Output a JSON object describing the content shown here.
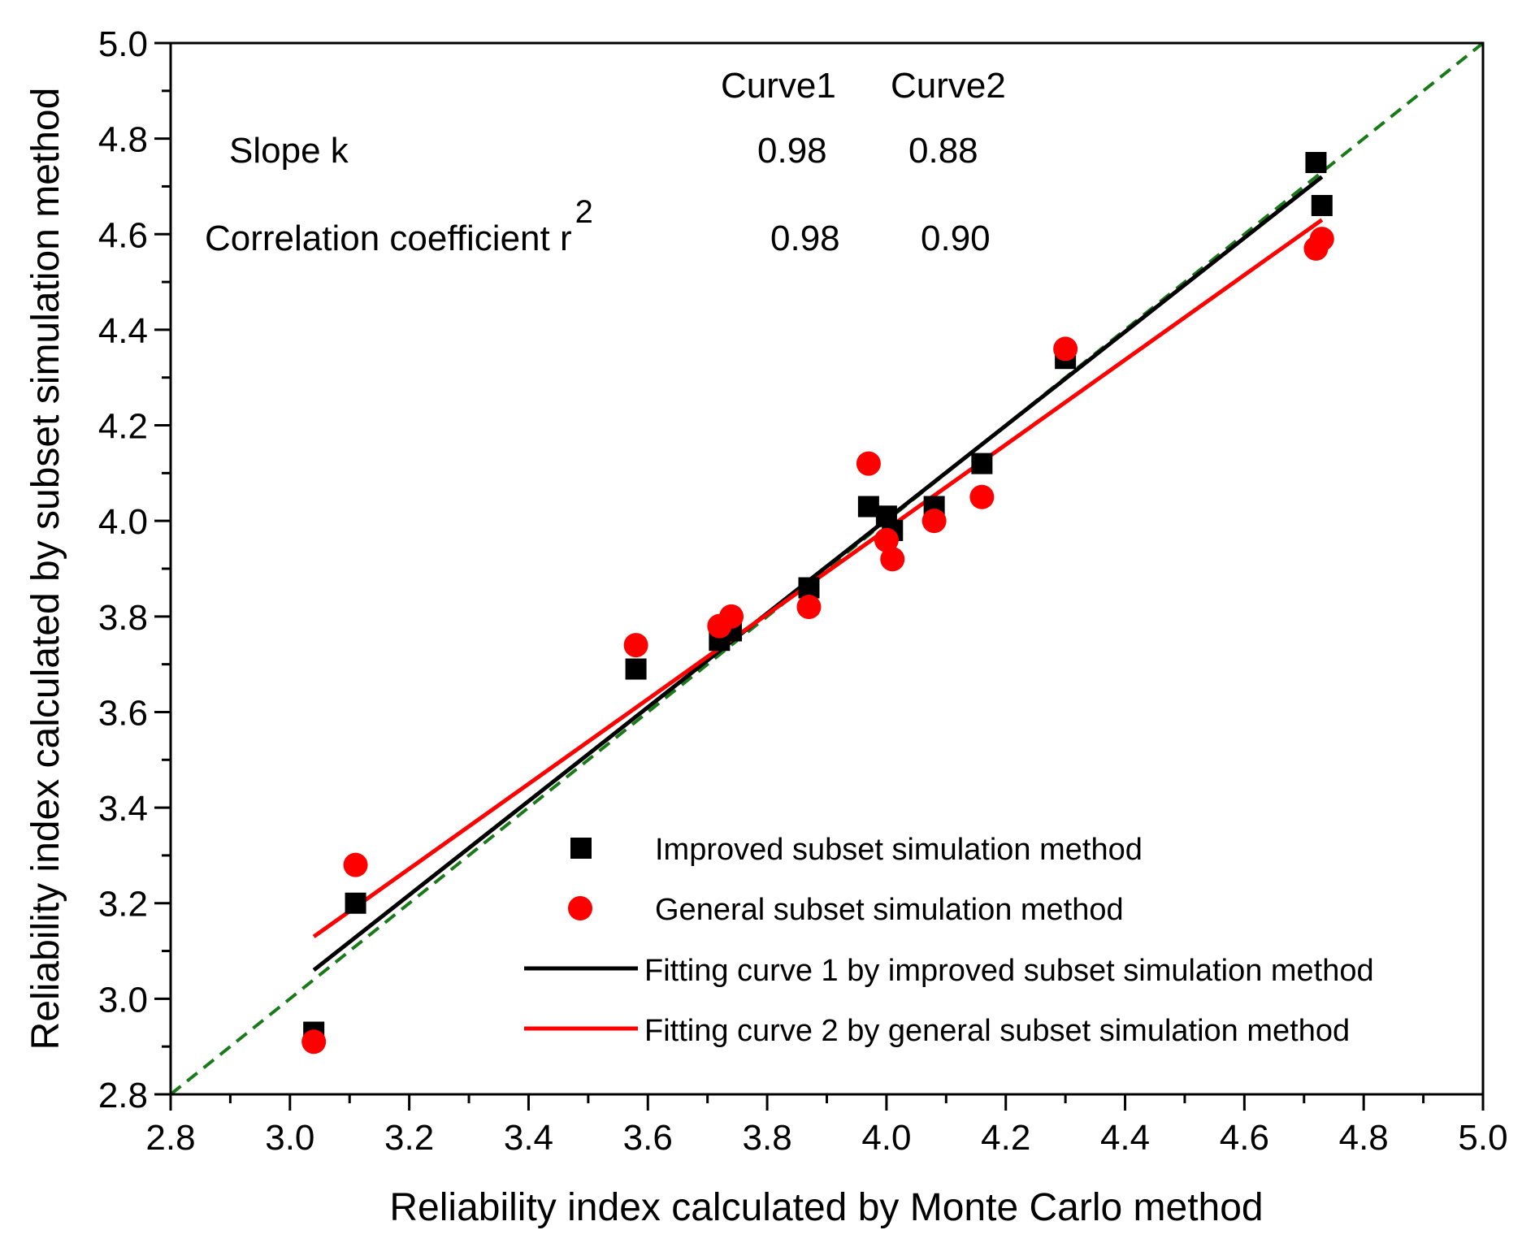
{
  "chart_data": {
    "type": "scatter",
    "xlabel": "Reliability index calculated by Monte Carlo method",
    "ylabel": "Reliability index calculated by subset simulation method",
    "xlim": [
      2.8,
      5.0
    ],
    "ylim": [
      2.8,
      5.0
    ],
    "x_ticks": [
      "2.8",
      "3.0",
      "3.2",
      "3.4",
      "3.6",
      "3.8",
      "4.0",
      "4.2",
      "4.4",
      "4.6",
      "4.8",
      "5.0"
    ],
    "y_ticks": [
      "2.8",
      "3.0",
      "3.2",
      "3.4",
      "3.6",
      "3.8",
      "4.0",
      "4.2",
      "4.4",
      "4.6",
      "4.8",
      "5.0"
    ],
    "grid": false,
    "legend_position": "bottom-right",
    "series": [
      {
        "name": "Improved subset simulation method",
        "marker": "square",
        "color": "#000000",
        "points": [
          [
            3.04,
            2.93
          ],
          [
            3.11,
            3.2
          ],
          [
            3.58,
            3.69
          ],
          [
            3.72,
            3.75
          ],
          [
            3.74,
            3.77
          ],
          [
            3.87,
            3.86
          ],
          [
            3.97,
            4.03
          ],
          [
            4.0,
            4.01
          ],
          [
            4.01,
            3.98
          ],
          [
            4.08,
            4.03
          ],
          [
            4.16,
            4.12
          ],
          [
            4.3,
            4.34
          ],
          [
            4.72,
            4.75
          ],
          [
            4.73,
            4.66
          ]
        ]
      },
      {
        "name": "General subset simulation method",
        "marker": "circle",
        "color": "#ff0000",
        "points": [
          [
            3.04,
            2.91
          ],
          [
            3.11,
            3.28
          ],
          [
            3.58,
            3.74
          ],
          [
            3.72,
            3.78
          ],
          [
            3.74,
            3.8
          ],
          [
            3.87,
            3.82
          ],
          [
            3.97,
            4.12
          ],
          [
            4.0,
            3.96
          ],
          [
            4.01,
            3.92
          ],
          [
            4.08,
            4.0
          ],
          [
            4.16,
            4.05
          ],
          [
            4.3,
            4.36
          ],
          [
            4.72,
            4.57
          ],
          [
            4.73,
            4.59
          ]
        ]
      }
    ],
    "lines": [
      {
        "name": "Fitting curve 1 by improved subset simulation method",
        "color": "#000000",
        "x": [
          3.04,
          4.73
        ],
        "y": [
          3.06,
          4.72
        ]
      },
      {
        "name": "Fitting curve 2 by general subset simulation method",
        "color": "#ff0000",
        "x": [
          3.04,
          4.73
        ],
        "y": [
          3.13,
          4.63
        ]
      }
    ],
    "reference_line": {
      "style": "dashed",
      "color": "#1a7a1a",
      "x": [
        2.8,
        5.0
      ],
      "y": [
        2.8,
        5.0
      ]
    },
    "annotation_table": {
      "headers": [
        "Curve1",
        "Curve2"
      ],
      "rows": [
        {
          "label": "Slope k",
          "values": [
            "0.98",
            "0.88"
          ]
        },
        {
          "label": "Correlation coefficient r",
          "label_sup": "2",
          "values": [
            "0.98",
            "0.90"
          ]
        }
      ]
    }
  }
}
